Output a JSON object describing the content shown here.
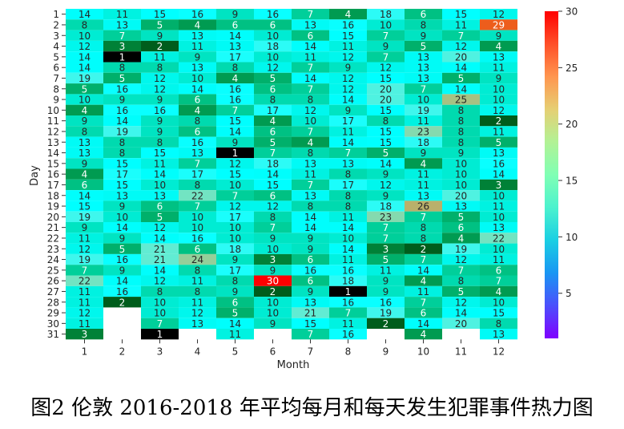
{
  "caption": "图2 伦敦 2016-2018 年平均每月和每天发生犯罪事件热力图",
  "chart_data": {
    "type": "heatmap",
    "xlabel": "Month",
    "ylabel": "Day",
    "colormap": "rainbow",
    "colorbar": {
      "min": 1,
      "max": 30,
      "ticks": [
        5,
        10,
        15,
        20,
        25,
        30
      ]
    },
    "x_categories": [
      "1",
      "2",
      "3",
      "4",
      "5",
      "6",
      "7",
      "8",
      "9",
      "10",
      "11",
      "12"
    ],
    "y_categories": [
      "1",
      "2",
      "3",
      "4",
      "5",
      "6",
      "7",
      "8",
      "9",
      "10",
      "11",
      "12",
      "13",
      "14",
      "15",
      "16",
      "17",
      "18",
      "19",
      "20",
      "21",
      "22",
      "23",
      "24",
      "25",
      "26",
      "27",
      "28",
      "29",
      "30",
      "31"
    ],
    "values": [
      [
        14,
        11,
        15,
        16,
        9,
        16,
        7,
        4,
        18,
        6,
        15,
        12
      ],
      [
        8,
        13,
        5,
        4,
        6,
        6,
        13,
        16,
        10,
        8,
        11,
        29
      ],
      [
        10,
        7,
        9,
        13,
        14,
        10,
        6,
        15,
        7,
        9,
        7,
        9
      ],
      [
        12,
        3,
        2,
        11,
        13,
        18,
        14,
        11,
        9,
        5,
        12,
        4
      ],
      [
        14,
        1,
        11,
        9,
        17,
        10,
        11,
        12,
        7,
        13,
        20,
        13
      ],
      [
        14,
        8,
        8,
        13,
        8,
        12,
        7,
        9,
        12,
        13,
        14,
        11
      ],
      [
        19,
        5,
        12,
        10,
        4,
        5,
        14,
        12,
        15,
        13,
        5,
        9
      ],
      [
        5,
        16,
        12,
        14,
        16,
        6,
        7,
        12,
        20,
        7,
        14,
        10
      ],
      [
        10,
        9,
        9,
        6,
        16,
        8,
        8,
        14,
        20,
        10,
        25,
        10
      ],
      [
        4,
        16,
        16,
        4,
        7,
        17,
        12,
        9,
        15,
        19,
        8,
        12
      ],
      [
        9,
        14,
        9,
        8,
        15,
        4,
        10,
        17,
        8,
        11,
        8,
        2
      ],
      [
        8,
        19,
        9,
        6,
        14,
        6,
        7,
        11,
        15,
        23,
        8,
        11
      ],
      [
        13,
        8,
        8,
        16,
        9,
        5,
        4,
        14,
        15,
        18,
        8,
        5
      ],
      [
        13,
        8,
        15,
        13,
        1,
        7,
        8,
        7,
        5,
        9,
        9,
        13
      ],
      [
        9,
        15,
        11,
        7,
        12,
        18,
        13,
        13,
        14,
        4,
        10,
        16
      ],
      [
        4,
        17,
        14,
        17,
        15,
        14,
        11,
        8,
        9,
        11,
        10,
        14
      ],
      [
        6,
        15,
        10,
        8,
        10,
        15,
        7,
        17,
        12,
        11,
        10,
        3
      ],
      [
        14,
        13,
        13,
        22,
        7,
        6,
        13,
        8,
        9,
        13,
        20,
        10
      ],
      [
        15,
        9,
        6,
        7,
        12,
        12,
        8,
        8,
        18,
        26,
        13,
        11
      ],
      [
        19,
        10,
        5,
        10,
        17,
        8,
        14,
        11,
        23,
        7,
        5,
        10
      ],
      [
        9,
        14,
        12,
        10,
        10,
        7,
        14,
        14,
        7,
        8,
        6,
        13
      ],
      [
        11,
        9,
        14,
        16,
        10,
        9,
        9,
        10,
        7,
        8,
        4,
        22
      ],
      [
        12,
        5,
        21,
        6,
        18,
        10,
        9,
        14,
        3,
        2,
        19,
        10
      ],
      [
        19,
        16,
        21,
        24,
        9,
        3,
        6,
        11,
        5,
        7,
        12,
        11
      ],
      [
        7,
        9,
        14,
        8,
        17,
        9,
        16,
        16,
        11,
        14,
        7,
        6
      ],
      [
        22,
        14,
        12,
        11,
        8,
        30,
        6,
        18,
        9,
        4,
        8,
        7
      ],
      [
        11,
        16,
        8,
        8,
        9,
        2,
        9,
        1,
        9,
        11,
        5,
        4
      ],
      [
        11,
        2,
        10,
        11,
        6,
        10,
        13,
        16,
        16,
        7,
        12,
        10
      ],
      [
        12,
        null,
        10,
        12,
        5,
        10,
        21,
        7,
        19,
        6,
        14,
        15
      ],
      [
        11,
        null,
        7,
        13,
        14,
        9,
        15,
        11,
        2,
        14,
        20,
        8
      ],
      [
        3,
        null,
        1,
        null,
        11,
        null,
        7,
        16,
        null,
        4,
        null,
        13
      ]
    ]
  }
}
